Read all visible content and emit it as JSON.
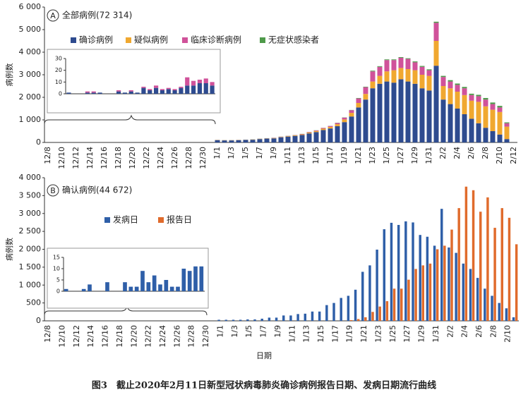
{
  "chart_data": [
    {
      "type": "bar",
      "stacked": true,
      "label": "A",
      "title": "全部病例(72 314)",
      "ylabel": "病例数",
      "categories": [
        "12/8",
        null,
        "12/10",
        null,
        "12/12",
        null,
        "12/14",
        null,
        "12/16",
        null,
        "12/18",
        null,
        "12/20",
        null,
        "12/22",
        null,
        "12/24",
        null,
        "12/26",
        null,
        "12/28",
        null,
        "12/30",
        null,
        "1/1",
        null,
        "1/3",
        null,
        "1/5",
        null,
        "1/7",
        null,
        "1/9",
        null,
        "1/11",
        null,
        "1/13",
        null,
        "1/15",
        null,
        "1/17",
        null,
        "1/19",
        null,
        "1/21",
        null,
        "1/23",
        null,
        "1/25",
        null,
        "1/27",
        null,
        "1/29",
        null,
        "1/31",
        null,
        "2/2",
        null,
        "2/4",
        null,
        "2/6",
        null,
        "2/8",
        null,
        "2/10",
        null,
        "2/12"
      ],
      "series": [
        {
          "name": "确诊病例",
          "color": "#2e4b8f",
          "values": [
            null,
            null,
            null,
            null,
            null,
            null,
            null,
            null,
            null,
            null,
            null,
            null,
            null,
            null,
            null,
            null,
            null,
            null,
            null,
            null,
            null,
            null,
            null,
            null,
            100,
            90,
            90,
            100,
            110,
            120,
            150,
            170,
            180,
            230,
            260,
            290,
            330,
            400,
            460,
            550,
            620,
            720,
            900,
            1150,
            1550,
            1900,
            2400,
            2600,
            2700,
            2650,
            2800,
            2700,
            2600,
            2400,
            2300,
            3400,
            1900,
            1700,
            1500,
            1250,
            1050,
            850,
            650,
            500,
            350,
            150,
            null
          ]
        },
        {
          "name": "疑似病例",
          "color": "#f0a830",
          "values": [
            null,
            null,
            null,
            null,
            null,
            null,
            null,
            null,
            null,
            null,
            null,
            null,
            null,
            null,
            null,
            null,
            null,
            null,
            null,
            null,
            null,
            null,
            null,
            null,
            5,
            5,
            5,
            5,
            5,
            10,
            10,
            10,
            15,
            15,
            20,
            25,
            30,
            40,
            50,
            60,
            70,
            90,
            120,
            160,
            200,
            250,
            300,
            350,
            450,
            550,
            500,
            550,
            600,
            600,
            650,
            1100,
            600,
            700,
            750,
            850,
            800,
            950,
            950,
            950,
            1000,
            550,
            null
          ]
        },
        {
          "name": "临床诊断病例",
          "color": "#d0529a",
          "values": [
            null,
            null,
            null,
            null,
            null,
            null,
            null,
            null,
            null,
            null,
            null,
            null,
            null,
            null,
            null,
            null,
            null,
            null,
            null,
            null,
            null,
            null,
            null,
            null,
            5,
            5,
            5,
            5,
            5,
            5,
            5,
            5,
            10,
            10,
            10,
            10,
            15,
            20,
            25,
            30,
            40,
            50,
            80,
            120,
            200,
            300,
            450,
            400,
            500,
            450,
            450,
            450,
            350,
            350,
            250,
            800,
            400,
            300,
            300,
            300,
            250,
            250,
            300,
            250,
            200,
            150,
            null
          ]
        },
        {
          "name": "无症状感染者",
          "color": "#4e9a4a",
          "values": [
            null,
            null,
            null,
            null,
            null,
            null,
            null,
            null,
            null,
            null,
            null,
            null,
            null,
            null,
            null,
            null,
            null,
            null,
            null,
            null,
            null,
            null,
            null,
            null,
            5,
            5,
            5,
            5,
            5,
            5,
            5,
            5,
            5,
            5,
            5,
            5,
            5,
            5,
            5,
            5,
            5,
            10,
            10,
            10,
            20,
            20,
            30,
            30,
            30,
            30,
            30,
            30,
            40,
            40,
            40,
            50,
            50,
            60,
            60,
            60,
            60,
            60,
            70,
            70,
            70,
            40,
            null
          ]
        }
      ],
      "ylim": [
        0,
        6000
      ],
      "yticks": [
        0,
        {
          "value": 1000,
          "label": "1 000"
        },
        {
          "value": 2000,
          "label": "2 000"
        },
        {
          "value": 3000,
          "label": "3 000"
        },
        {
          "value": 4000,
          "label": "4 000"
        },
        {
          "value": 5000,
          "label": "5 000"
        },
        {
          "value": 6000,
          "label": "6 000"
        }
      ]
    },
    {
      "type": "bar",
      "stacked": true,
      "series": [
        {
          "color": "#2e4b8f",
          "values": [
            1,
            0,
            0,
            1,
            1,
            1,
            0,
            0,
            2,
            1,
            2,
            1,
            5,
            3,
            5,
            3,
            4,
            3,
            5,
            7,
            7,
            9,
            9,
            7
          ]
        },
        {
          "color": "#d0529a",
          "values": [
            0,
            0,
            0,
            1,
            1,
            0,
            0,
            0,
            1,
            0,
            1,
            0,
            1,
            1,
            2,
            1,
            1,
            1,
            1,
            7,
            4,
            3,
            4,
            3
          ]
        }
      ],
      "ylim": [
        0,
        30
      ],
      "yticks": [
        0,
        10,
        20,
        30
      ]
    },
    {
      "type": "bar",
      "stacked": false,
      "label": "B",
      "title": "确认病例(44 672)",
      "ylabel": "病例数",
      "xlabel": "日期",
      "categories": [
        "12/8",
        null,
        "12/10",
        null,
        "12/12",
        null,
        "12/14",
        null,
        "12/16",
        null,
        "12/18",
        null,
        "12/20",
        null,
        "12/22",
        null,
        "12/24",
        null,
        "12/26",
        null,
        "12/28",
        null,
        "12/30",
        null,
        "1/1",
        null,
        "1/3",
        null,
        "1/5",
        null,
        "1/7",
        null,
        "1/9",
        null,
        "1/11",
        null,
        "1/13",
        null,
        "1/15",
        null,
        "1/17",
        null,
        "1/19",
        null,
        "1/21",
        null,
        "1/23",
        null,
        "1/25",
        null,
        "1/27",
        null,
        "1/29",
        null,
        "1/31",
        null,
        "2/2",
        null,
        "2/4",
        null,
        "2/6",
        null,
        "2/8",
        null,
        "2/10",
        null
      ],
      "series": [
        {
          "name": "发病日",
          "color": "#2f5fa8",
          "values": [
            null,
            null,
            null,
            null,
            null,
            null,
            null,
            null,
            null,
            null,
            null,
            null,
            null,
            null,
            null,
            null,
            null,
            null,
            null,
            null,
            null,
            null,
            null,
            null,
            30,
            30,
            30,
            30,
            40,
            40,
            60,
            90,
            90,
            150,
            150,
            190,
            200,
            260,
            260,
            440,
            500,
            640,
            700,
            870,
            1370,
            1550,
            1990,
            2560,
            2740,
            2680,
            2780,
            2750,
            2400,
            2350,
            2100,
            3130,
            2050,
            1900,
            1600,
            1450,
            1200,
            900,
            700,
            500,
            350,
            100
          ]
        },
        {
          "name": "报告日",
          "color": "#e06b2c",
          "values": [
            null,
            null,
            null,
            null,
            null,
            null,
            null,
            null,
            null,
            null,
            null,
            null,
            null,
            null,
            null,
            null,
            null,
            null,
            null,
            null,
            null,
            null,
            null,
            null,
            0,
            0,
            0,
            0,
            0,
            0,
            0,
            0,
            0,
            0,
            0,
            0,
            0,
            0,
            0,
            0,
            0,
            0,
            20,
            50,
            100,
            250,
            400,
            550,
            900,
            900,
            1150,
            1450,
            1550,
            1600,
            2000,
            2100,
            2550,
            3150,
            3750,
            3650,
            3050,
            3450,
            2600,
            3150,
            2880,
            2140
          ]
        }
      ],
      "ylim": [
        0,
        4000
      ],
      "yticks": [
        0,
        500,
        {
          "value": 1000,
          "label": "1 000"
        },
        {
          "value": 1500,
          "label": "1 500"
        },
        {
          "value": 2000,
          "label": "2 000"
        },
        {
          "value": 2500,
          "label": "2 500"
        },
        {
          "value": 3000,
          "label": "3 000"
        },
        {
          "value": 3500,
          "label": "3 500"
        },
        {
          "value": 4000,
          "label": "4 000"
        }
      ]
    },
    {
      "type": "bar",
      "stacked": false,
      "series": [
        {
          "color": "#2f5fa8",
          "values": [
            1,
            0,
            0,
            1,
            3,
            0,
            0,
            4,
            0,
            0,
            4,
            2,
            2,
            9,
            4,
            7,
            3,
            5,
            2,
            2,
            10,
            9,
            11,
            11
          ]
        }
      ],
      "ylim": [
        0,
        15
      ],
      "yticks": [
        0,
        5,
        10,
        15
      ]
    }
  ],
  "caption": "图3　截止2020年2月11日新型冠状病毒肺炎确诊病例报告日期、发病日期流行曲线"
}
